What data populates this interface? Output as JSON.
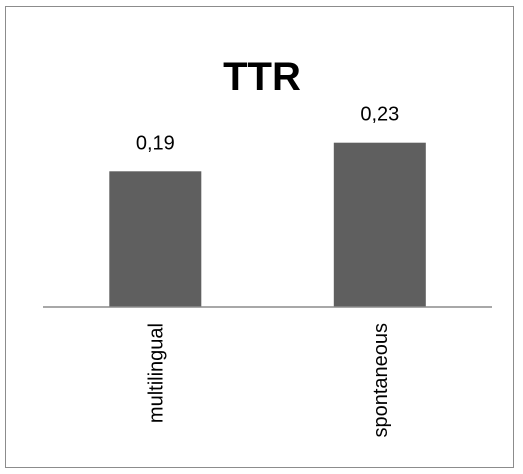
{
  "chart_data": {
    "type": "bar",
    "title": "TTR",
    "categories": [
      "multilingual",
      "spontaneous"
    ],
    "values": [
      0.19,
      0.23
    ],
    "data_labels": [
      "0,19",
      "0,23"
    ],
    "ylim": [
      0,
      0.35
    ],
    "grid": false,
    "legend": "none",
    "bar_color": "#5f5f5f",
    "axis_color": "#8c8c8c"
  }
}
